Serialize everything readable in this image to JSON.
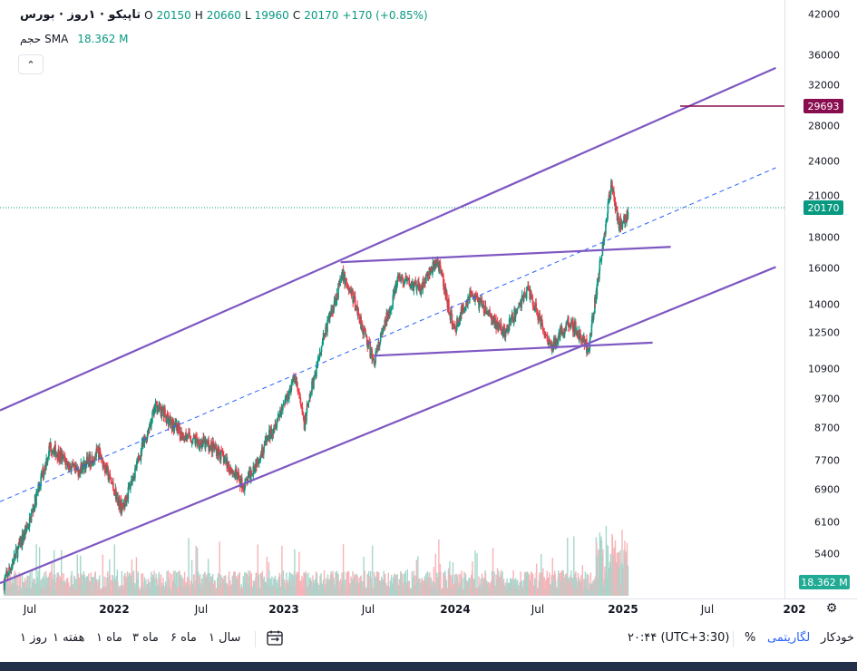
{
  "header": {
    "title": "تاپیکو · ۱روز · بورس",
    "ohlc": {
      "open_label": "O",
      "open": "20150",
      "high_label": "H",
      "high": "20660",
      "low_label": "L",
      "low": "19960",
      "close_label": "C",
      "close": "20170",
      "change": "+170 (+0.85%)"
    },
    "volume_label": "حجم",
    "sma_label": "SMA",
    "sma_value": "18.362 M"
  },
  "colors": {
    "up": "#089981",
    "down": "#f23645",
    "channel": "#7e57c2",
    "midline": "#2962ff",
    "target": "#880e4f",
    "last_price": "#089981",
    "vol_up": "#a5d6cc",
    "vol_down": "#f7b3b8"
  },
  "price_axis": {
    "ticks": [
      "42000",
      "36000",
      "32000",
      "28000",
      "24000",
      "21000",
      "18000",
      "16000",
      "14000",
      "12500",
      "10900",
      "9700",
      "8700",
      "7700",
      "6900",
      "6100",
      "5400"
    ],
    "target_badge": "29693",
    "last_badge": "20170",
    "volume_badge": "18.362 M"
  },
  "time_axis": {
    "ticks": [
      {
        "label": "Jul",
        "bold": false
      },
      {
        "label": "2022",
        "bold": true
      },
      {
        "label": "Jul",
        "bold": false
      },
      {
        "label": "2023",
        "bold": true
      },
      {
        "label": "Jul",
        "bold": false
      },
      {
        "label": "2024",
        "bold": true
      },
      {
        "label": "Jul",
        "bold": false
      },
      {
        "label": "2025",
        "bold": true
      },
      {
        "label": "Jul",
        "bold": false
      },
      {
        "label": "202",
        "bold": true
      }
    ]
  },
  "toolbar": {
    "periods": [
      "۱ روز",
      "۱ هفته",
      "۱ ماه",
      "۳ ماه",
      "۶ ماه",
      "۱ سال"
    ],
    "timezone": "۲۰:۴۴ (UTC+3:30)",
    "percent": "%",
    "log": "لگاریتمی",
    "auto": "خودکار"
  },
  "chart_data": {
    "type": "candlestick",
    "symbol": "تاپیکو",
    "interval": "1D",
    "scale": "log",
    "ylim": [
      4800,
      44000
    ],
    "xlim": [
      "2021-05-01",
      "2026-01-20"
    ],
    "last_price": 20170,
    "target_level": 29693,
    "price_path": [
      [
        "2021-05-10",
        5000
      ],
      [
        "2021-07-05",
        6300
      ],
      [
        "2021-08-20",
        8400
      ],
      [
        "2021-10-15",
        7600
      ],
      [
        "2021-12-05",
        8200
      ],
      [
        "2022-01-25",
        6600
      ],
      [
        "2022-04-10",
        9800
      ],
      [
        "2022-06-01",
        8800
      ],
      [
        "2022-08-20",
        8300
      ],
      [
        "2022-10-20",
        7200
      ],
      [
        "2022-12-20",
        8900
      ],
      [
        "2023-02-10",
        10900
      ],
      [
        "2023-03-01",
        9100
      ],
      [
        "2023-04-10",
        12500
      ],
      [
        "2023-05-25",
        16000
      ],
      [
        "2023-06-20",
        14500
      ],
      [
        "2023-08-01",
        11500
      ],
      [
        "2023-09-25",
        15800
      ],
      [
        "2023-11-10",
        15200
      ],
      [
        "2023-12-20",
        16900
      ],
      [
        "2024-01-25",
        13000
      ],
      [
        "2024-03-01",
        15000
      ],
      [
        "2024-05-15",
        12800
      ],
      [
        "2024-07-05",
        15200
      ],
      [
        "2024-08-25",
        12200
      ],
      [
        "2024-10-05",
        13500
      ],
      [
        "2024-11-15",
        12100
      ],
      [
        "2024-12-15",
        17500
      ],
      [
        "2025-01-05",
        22800
      ],
      [
        "2025-01-20",
        19300
      ],
      [
        "2025-02-10",
        20170
      ]
    ],
    "channel_lines": [
      {
        "from": [
          "2021-05-01",
          9600
        ],
        "to": [
          "2026-01-01",
          35000
        ]
      },
      {
        "from": [
          "2021-05-01",
          5000
        ],
        "to": [
          "2026-01-01",
          16500
        ]
      },
      {
        "from": [
          "2021-05-01",
          6800
        ],
        "to": [
          "2026-01-01",
          24000
        ],
        "dashed": true
      },
      {
        "from": [
          "2023-05-20",
          16800
        ],
        "to": [
          "2025-05-15",
          17800
        ]
      },
      {
        "from": [
          "2023-08-01",
          11800
        ],
        "to": [
          "2025-04-05",
          12400
        ]
      }
    ]
  }
}
